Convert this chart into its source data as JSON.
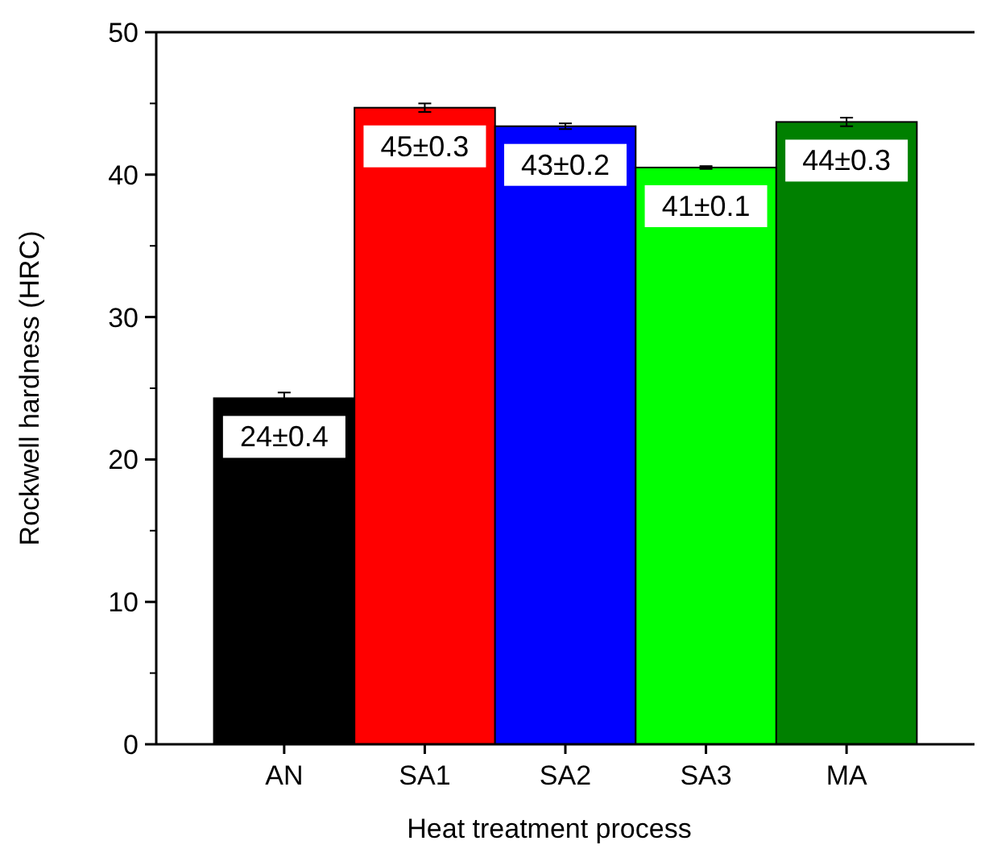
{
  "chart_data": {
    "type": "bar",
    "xlabel": "Heat treatment process",
    "ylabel": "Rockwell hardness (HRC)",
    "categories": [
      "AN",
      "SA1",
      "SA2",
      "SA3",
      "MA"
    ],
    "values": [
      24.3,
      44.7,
      43.4,
      40.5,
      43.7
    ],
    "errors": [
      0.4,
      0.3,
      0.2,
      0.1,
      0.3
    ],
    "colors": [
      "#000000",
      "#ff0000",
      "#0000ff",
      "#00ff00",
      "#008000"
    ],
    "value_labels": [
      "24±0.4",
      "45±0.3",
      "43±0.2",
      "41±0.1",
      "44±0.3"
    ],
    "ylim": [
      0,
      50
    ],
    "yticks": [
      0,
      10,
      20,
      30,
      40,
      50
    ]
  }
}
